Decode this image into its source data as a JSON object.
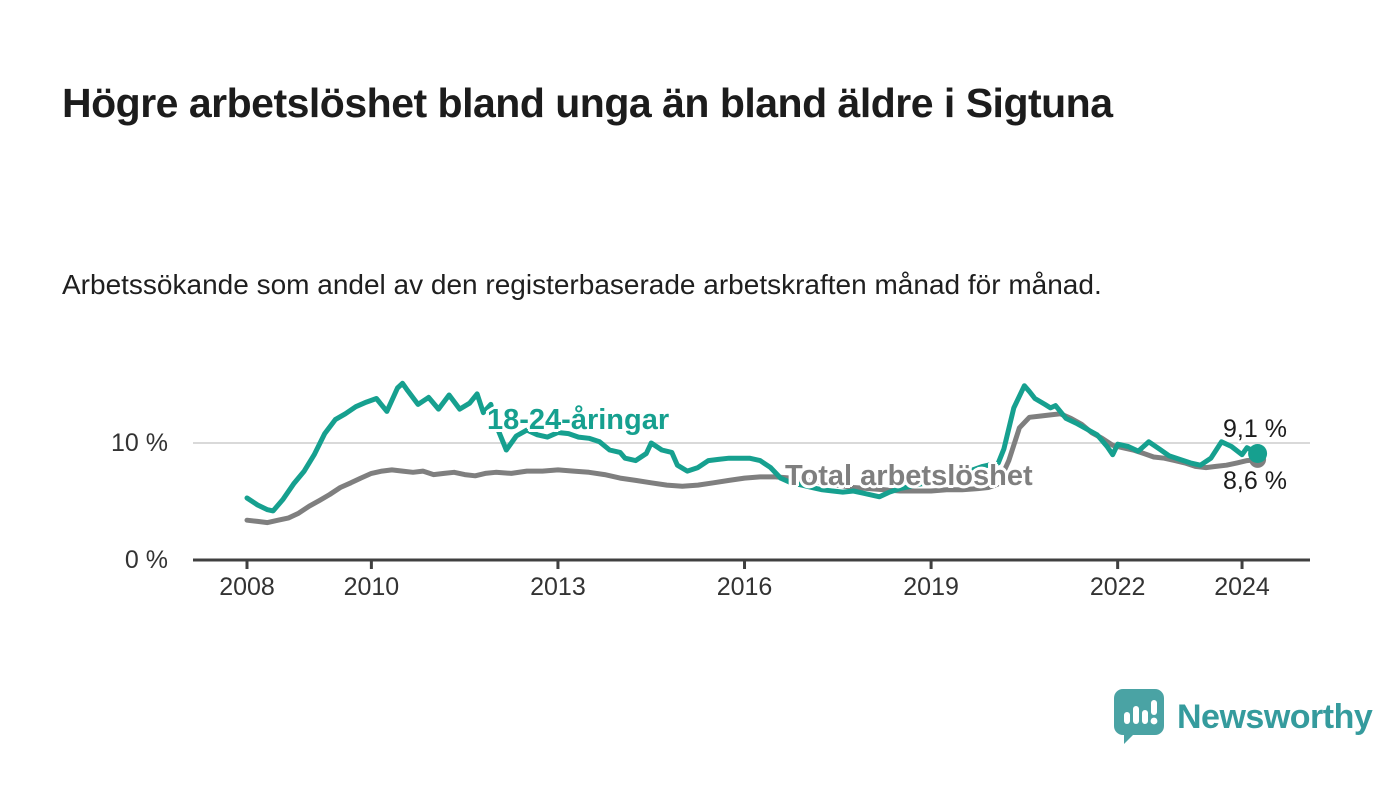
{
  "page": {
    "background": "#ffffff"
  },
  "header": {
    "title": "Högre arbetslöshet bland unga än bland äldre i Sigtuna",
    "subtitle": "Arbetssökande som andel av den registerbaserade arbetskraften månad för månad."
  },
  "chart_data": {
    "type": "line",
    "title": "Högre arbetslöshet bland unga än bland äldre i Sigtuna",
    "subtitle": "Arbetssökande som andel av den registerbaserade arbetskraften månad för månad.",
    "x_axis": {
      "ticks": [
        2008,
        2010,
        2013,
        2016,
        2019,
        2022,
        2024
      ],
      "range": [
        2007.1,
        2025.1
      ],
      "unit": "year"
    },
    "y_axis": {
      "ticks": [
        0,
        10
      ],
      "tick_labels": [
        "0 %",
        "10 %"
      ],
      "range": [
        0,
        15.5
      ],
      "gridline_at": 10,
      "unit": "%"
    },
    "grid": "horizontal-only",
    "legend_position": "inline-labels",
    "colors": {
      "young": "#16a08f",
      "total": "#7f7f7f",
      "axis": "#404040",
      "gridline": "#d9d9d9"
    },
    "series": [
      {
        "id": "total",
        "name": "Total arbetslöshet",
        "color": "#7f7f7f",
        "end_label": "8,6 %",
        "end_value": 8.6,
        "points": [
          [
            2008.0,
            3.4
          ],
          [
            2008.17,
            3.3
          ],
          [
            2008.33,
            3.2
          ],
          [
            2008.5,
            3.4
          ],
          [
            2008.67,
            3.6
          ],
          [
            2008.83,
            4.0
          ],
          [
            2009.0,
            4.6
          ],
          [
            2009.17,
            5.1
          ],
          [
            2009.33,
            5.6
          ],
          [
            2009.5,
            6.2
          ],
          [
            2009.67,
            6.6
          ],
          [
            2009.83,
            7.0
          ],
          [
            2010.0,
            7.4
          ],
          [
            2010.17,
            7.6
          ],
          [
            2010.33,
            7.7
          ],
          [
            2010.5,
            7.6
          ],
          [
            2010.67,
            7.5
          ],
          [
            2010.83,
            7.6
          ],
          [
            2011.0,
            7.3
          ],
          [
            2011.17,
            7.4
          ],
          [
            2011.33,
            7.5
          ],
          [
            2011.5,
            7.3
          ],
          [
            2011.67,
            7.2
          ],
          [
            2011.83,
            7.4
          ],
          [
            2012.0,
            7.5
          ],
          [
            2012.25,
            7.4
          ],
          [
            2012.5,
            7.6
          ],
          [
            2012.75,
            7.6
          ],
          [
            2013.0,
            7.7
          ],
          [
            2013.25,
            7.6
          ],
          [
            2013.5,
            7.5
          ],
          [
            2013.75,
            7.3
          ],
          [
            2014.0,
            7.0
          ],
          [
            2014.25,
            6.8
          ],
          [
            2014.5,
            6.6
          ],
          [
            2014.75,
            6.4
          ],
          [
            2015.0,
            6.3
          ],
          [
            2015.25,
            6.4
          ],
          [
            2015.5,
            6.6
          ],
          [
            2015.75,
            6.8
          ],
          [
            2016.0,
            7.0
          ],
          [
            2016.25,
            7.1
          ],
          [
            2016.5,
            7.1
          ],
          [
            2016.75,
            7.0
          ],
          [
            2017.0,
            6.8
          ],
          [
            2017.25,
            6.6
          ],
          [
            2017.5,
            6.4
          ],
          [
            2017.75,
            6.2
          ],
          [
            2018.0,
            6.1
          ],
          [
            2018.25,
            6.0
          ],
          [
            2018.5,
            5.9
          ],
          [
            2018.75,
            5.9
          ],
          [
            2019.0,
            5.9
          ],
          [
            2019.25,
            6.0
          ],
          [
            2019.5,
            6.0
          ],
          [
            2019.75,
            6.1
          ],
          [
            2019.92,
            6.2
          ],
          [
            2020.08,
            6.5
          ],
          [
            2020.25,
            8.5
          ],
          [
            2020.42,
            11.3
          ],
          [
            2020.58,
            12.2
          ],
          [
            2020.75,
            12.3
          ],
          [
            2020.92,
            12.4
          ],
          [
            2021.08,
            12.5
          ],
          [
            2021.25,
            12.1
          ],
          [
            2021.42,
            11.6
          ],
          [
            2021.58,
            10.9
          ],
          [
            2021.75,
            10.4
          ],
          [
            2021.92,
            9.8
          ],
          [
            2022.08,
            9.6
          ],
          [
            2022.25,
            9.4
          ],
          [
            2022.42,
            9.1
          ],
          [
            2022.58,
            8.8
          ],
          [
            2022.75,
            8.7
          ],
          [
            2022.92,
            8.5
          ],
          [
            2023.08,
            8.3
          ],
          [
            2023.25,
            8.0
          ],
          [
            2023.42,
            7.9
          ],
          [
            2023.58,
            8.0
          ],
          [
            2023.75,
            8.1
          ],
          [
            2023.92,
            8.3
          ],
          [
            2024.08,
            8.5
          ],
          [
            2024.25,
            8.6
          ]
        ]
      },
      {
        "id": "young",
        "name": "18-24-åringar",
        "color": "#16a08f",
        "end_label": "9,1 %",
        "end_value": 9.1,
        "points": [
          [
            2008.0,
            5.3
          ],
          [
            2008.17,
            4.7
          ],
          [
            2008.33,
            4.3
          ],
          [
            2008.42,
            4.2
          ],
          [
            2008.58,
            5.2
          ],
          [
            2008.75,
            6.5
          ],
          [
            2008.92,
            7.6
          ],
          [
            2009.08,
            9.0
          ],
          [
            2009.25,
            10.8
          ],
          [
            2009.42,
            12.0
          ],
          [
            2009.58,
            12.5
          ],
          [
            2009.75,
            13.1
          ],
          [
            2009.92,
            13.5
          ],
          [
            2010.08,
            13.8
          ],
          [
            2010.25,
            12.7
          ],
          [
            2010.42,
            14.7
          ],
          [
            2010.5,
            15.1
          ],
          [
            2010.58,
            14.5
          ],
          [
            2010.75,
            13.3
          ],
          [
            2010.92,
            13.9
          ],
          [
            2011.08,
            12.9
          ],
          [
            2011.25,
            14.1
          ],
          [
            2011.42,
            12.9
          ],
          [
            2011.58,
            13.4
          ],
          [
            2011.7,
            14.2
          ],
          [
            2011.8,
            12.6
          ],
          [
            2011.92,
            13.3
          ],
          [
            2012.0,
            11.6
          ],
          [
            2012.17,
            9.4
          ],
          [
            2012.33,
            10.6
          ],
          [
            2012.5,
            11.1
          ],
          [
            2012.67,
            10.7
          ],
          [
            2012.83,
            10.5
          ],
          [
            2013.0,
            10.9
          ],
          [
            2013.17,
            10.8
          ],
          [
            2013.33,
            10.5
          ],
          [
            2013.5,
            10.4
          ],
          [
            2013.67,
            10.1
          ],
          [
            2013.83,
            9.4
          ],
          [
            2014.0,
            9.2
          ],
          [
            2014.08,
            8.7
          ],
          [
            2014.25,
            8.5
          ],
          [
            2014.42,
            9.1
          ],
          [
            2014.5,
            10.0
          ],
          [
            2014.67,
            9.4
          ],
          [
            2014.83,
            9.2
          ],
          [
            2014.92,
            8.1
          ],
          [
            2015.08,
            7.6
          ],
          [
            2015.25,
            7.9
          ],
          [
            2015.42,
            8.5
          ],
          [
            2015.58,
            8.6
          ],
          [
            2015.75,
            8.7
          ],
          [
            2015.92,
            8.7
          ],
          [
            2016.08,
            8.7
          ],
          [
            2016.25,
            8.5
          ],
          [
            2016.42,
            7.9
          ],
          [
            2016.58,
            7.0
          ],
          [
            2016.75,
            6.6
          ],
          [
            2016.92,
            6.4
          ],
          [
            2017.08,
            6.2
          ],
          [
            2017.25,
            6.0
          ],
          [
            2017.42,
            5.9
          ],
          [
            2017.58,
            5.8
          ],
          [
            2017.75,
            5.9
          ],
          [
            2017.92,
            5.7
          ],
          [
            2018.08,
            5.5
          ],
          [
            2018.17,
            5.4
          ],
          [
            2018.33,
            5.8
          ],
          [
            2018.5,
            6.1
          ],
          [
            2018.67,
            6.3
          ],
          [
            2018.83,
            6.5
          ],
          [
            2019.0,
            6.6
          ],
          [
            2019.17,
            6.9
          ],
          [
            2019.33,
            7.1
          ],
          [
            2019.5,
            7.4
          ],
          [
            2019.67,
            7.7
          ],
          [
            2019.83,
            8.0
          ],
          [
            2019.92,
            8.1
          ],
          [
            2020.08,
            8.3
          ],
          [
            2020.17,
            9.5
          ],
          [
            2020.33,
            13.0
          ],
          [
            2020.5,
            14.9
          ],
          [
            2020.58,
            14.4
          ],
          [
            2020.67,
            13.8
          ],
          [
            2020.83,
            13.3
          ],
          [
            2020.92,
            13.0
          ],
          [
            2021.0,
            13.2
          ],
          [
            2021.17,
            12.1
          ],
          [
            2021.33,
            11.7
          ],
          [
            2021.5,
            11.2
          ],
          [
            2021.67,
            10.7
          ],
          [
            2021.83,
            9.7
          ],
          [
            2021.92,
            9.0
          ],
          [
            2022.0,
            9.9
          ],
          [
            2022.17,
            9.7
          ],
          [
            2022.33,
            9.3
          ],
          [
            2022.5,
            10.1
          ],
          [
            2022.67,
            9.5
          ],
          [
            2022.83,
            8.9
          ],
          [
            2023.0,
            8.6
          ],
          [
            2023.17,
            8.3
          ],
          [
            2023.33,
            8.1
          ],
          [
            2023.5,
            8.7
          ],
          [
            2023.67,
            10.1
          ],
          [
            2023.83,
            9.7
          ],
          [
            2024.0,
            9.0
          ],
          [
            2024.08,
            9.6
          ],
          [
            2024.25,
            9.1
          ]
        ]
      }
    ]
  },
  "footer": {
    "brand": "Newsworthy",
    "logo_icon": "speech-bubble-bar-chart-icon",
    "brand_color": "#359b9d",
    "logo_color": "#4aa3a4"
  }
}
